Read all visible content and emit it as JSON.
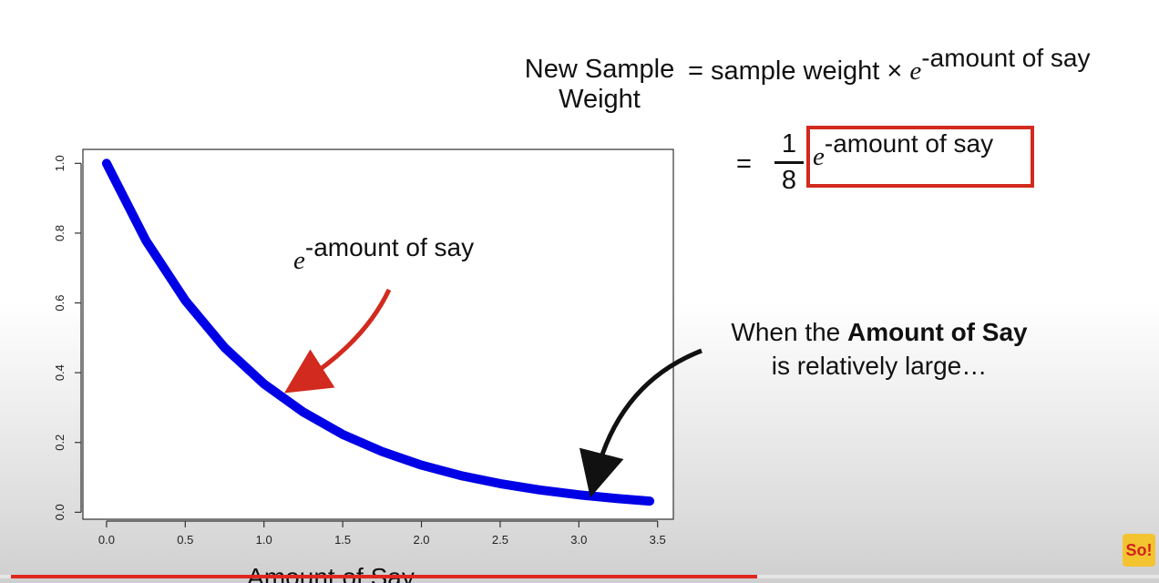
{
  "chart_data": {
    "type": "line",
    "xlabel": "Amount of Say",
    "ylabel": "",
    "xlim": [
      -0.15,
      3.6
    ],
    "ylim": [
      -0.02,
      1.04
    ],
    "xticks": [
      "0.0",
      "0.5",
      "1.0",
      "1.5",
      "2.0",
      "2.5",
      "3.0",
      "3.5"
    ],
    "yticks": [
      "0.0",
      "0.2",
      "0.4",
      "0.6",
      "0.8",
      "1.0"
    ],
    "grid": false,
    "series": [
      {
        "color": "#0000e6",
        "x": [
          0.0,
          0.25,
          0.5,
          0.75,
          1.0,
          1.25,
          1.5,
          1.75,
          2.0,
          2.25,
          2.5,
          2.75,
          3.0,
          3.25,
          3.45
        ],
        "values": [
          1.0,
          0.779,
          0.607,
          0.472,
          0.368,
          0.287,
          0.223,
          0.174,
          0.135,
          0.105,
          0.082,
          0.064,
          0.05,
          0.039,
          0.032
        ]
      }
    ],
    "annotations": [
      {
        "text_base": "e",
        "text_sup": "-amount of say",
        "color": "#111111",
        "arrow_color": "#d22a1e",
        "arrow_target_x": 1.22,
        "arrow_target_y": 0.37
      },
      {
        "text_line1_pre": "When the ",
        "text_line1_bold": "Amount of Say",
        "text_line2": "is relatively large…",
        "arrow_color": "#111111",
        "arrow_target_x": 3.08,
        "arrow_target_y": 0.09
      }
    ]
  },
  "formula": {
    "lhs_line1": "New Sample",
    "lhs_line2": "Weight",
    "rhs1_text": "= sample weight ×",
    "e": "e",
    "exponent": "-amount of say",
    "eq2": "=",
    "frac_num": "1",
    "frac_den": "8",
    "highlight_color": "#d22a1e"
  },
  "video": {
    "progress": 0.65,
    "progress_color": "#e0271e",
    "logo_text": "So!"
  }
}
